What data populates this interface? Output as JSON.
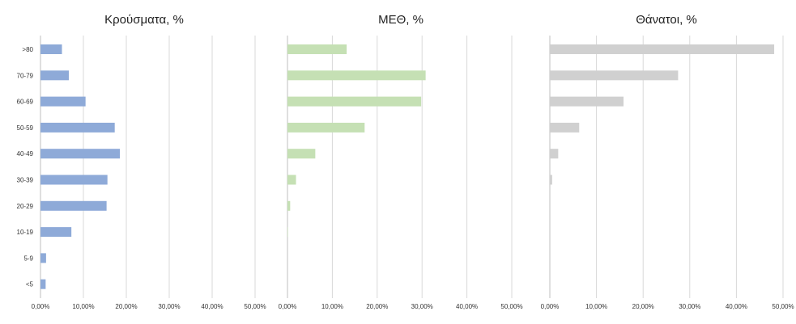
{
  "chart_data": [
    {
      "type": "bar",
      "orientation": "horizontal",
      "title": "Κρούσματα, %",
      "categories": [
        ">80",
        "70-79",
        "60-69",
        "50-59",
        "40-49",
        "30-39",
        "20-29",
        "10-19",
        "5-9",
        "<5"
      ],
      "values": [
        5.0,
        6.6,
        10.5,
        17.3,
        18.5,
        15.6,
        15.4,
        7.2,
        1.3,
        1.2
      ],
      "xlim": [
        0,
        50
      ],
      "xticks": [
        "0,00%",
        "10,00%",
        "20,00%",
        "30,00%",
        "40,00%",
        "50,00%"
      ],
      "color": "#8eaad8",
      "grid": true
    },
    {
      "type": "bar",
      "orientation": "horizontal",
      "title": "ΜΕΘ, %",
      "categories": [
        ">80",
        "70-79",
        "60-69",
        "50-59",
        "40-49",
        "30-39",
        "20-29",
        "10-19",
        "5-9",
        "<5"
      ],
      "values": [
        13.2,
        30.8,
        29.8,
        17.2,
        6.2,
        1.9,
        0.6,
        0.1,
        0.0,
        0.0
      ],
      "xlim": [
        0,
        50
      ],
      "xticks": [
        "0,00%",
        "10,00%",
        "20,00%",
        "30,00%",
        "40,00%",
        "50,00%"
      ],
      "color": "#c5e0b4",
      "grid": true
    },
    {
      "type": "bar",
      "orientation": "horizontal",
      "title": "Θάνατοι, %",
      "categories": [
        ">80",
        "70-79",
        "60-69",
        "50-59",
        "40-49",
        "30-39",
        "20-29",
        "10-19",
        "5-9",
        "<5"
      ],
      "values": [
        48.1,
        27.5,
        15.8,
        6.3,
        1.8,
        0.5,
        0.0,
        0.0,
        0.0,
        0.0
      ],
      "xlim": [
        0,
        50
      ],
      "xticks": [
        "0,00%",
        "10,00%",
        "20,00%",
        "30,00%",
        "40,00%",
        "50,00%"
      ],
      "color": "#d0d0d0",
      "grid": true
    }
  ]
}
